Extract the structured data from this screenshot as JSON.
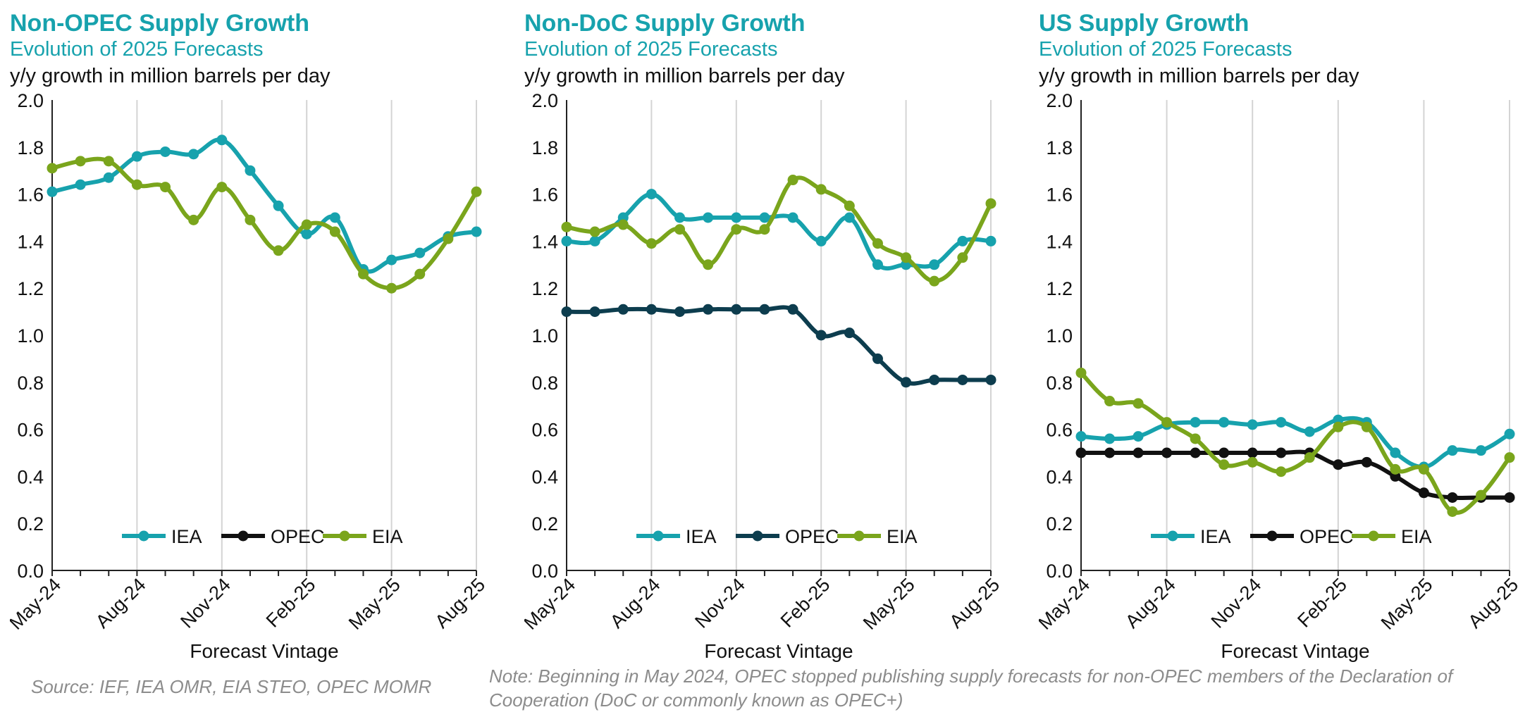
{
  "chart_data": [
    {
      "type": "line",
      "title": "Non-OPEC Supply Growth",
      "subtitle": "Evolution of 2025 Forecasts",
      "ylabel": "y/y growth in million barrels per day",
      "xlabel": "Forecast Vintage",
      "ylim": [
        0,
        2
      ],
      "yticks": [
        "0.0",
        "0.2",
        "0.4",
        "0.6",
        "0.8",
        "1.0",
        "1.2",
        "1.4",
        "1.6",
        "1.8",
        "2.0"
      ],
      "categories": [
        "May-24",
        "Jun-24",
        "Jul-24",
        "Aug-24",
        "Sep-24",
        "Oct-24",
        "Nov-24",
        "Dec-24",
        "Jan-25",
        "Feb-25",
        "Mar-25",
        "Apr-25",
        "May-25",
        "Jun-25",
        "Jul-25",
        "Aug-25"
      ],
      "tick_labels": [
        "May-24",
        "Aug-24",
        "Nov-24",
        "Feb-25",
        "May-25",
        "Aug-25"
      ],
      "legend": "bottom-center",
      "series": [
        {
          "name": "IEA",
          "color": "#17a2ad",
          "values": [
            1.61,
            1.64,
            1.67,
            1.76,
            1.78,
            1.77,
            1.83,
            1.7,
            1.55,
            1.43,
            1.5,
            1.28,
            1.32,
            1.35,
            1.42,
            1.44
          ]
        },
        {
          "name": "OPEC",
          "color": "#111111",
          "values": [
            null,
            null,
            null,
            null,
            null,
            null,
            null,
            null,
            null,
            null,
            null,
            null,
            null,
            null,
            null,
            null
          ]
        },
        {
          "name": "EIA",
          "color": "#7aa51c",
          "values": [
            1.71,
            1.74,
            1.74,
            1.64,
            1.63,
            1.49,
            1.63,
            1.49,
            1.36,
            1.47,
            1.44,
            1.26,
            1.2,
            1.26,
            1.41,
            1.61
          ]
        }
      ]
    },
    {
      "type": "line",
      "title": "Non-DoC Supply Growth",
      "subtitle": "Evolution of 2025 Forecasts",
      "ylabel": "y/y growth in million barrels per day",
      "xlabel": "Forecast Vintage",
      "ylim": [
        0,
        2
      ],
      "yticks": [
        "0.0",
        "0.2",
        "0.4",
        "0.6",
        "0.8",
        "1.0",
        "1.2",
        "1.4",
        "1.6",
        "1.8",
        "2.0"
      ],
      "categories": [
        "May-24",
        "Jun-24",
        "Jul-24",
        "Aug-24",
        "Sep-24",
        "Oct-24",
        "Nov-24",
        "Dec-24",
        "Jan-25",
        "Feb-25",
        "Mar-25",
        "Apr-25",
        "May-25",
        "Jun-25",
        "Jul-25",
        "Aug-25"
      ],
      "tick_labels": [
        "May-24",
        "Aug-24",
        "Nov-24",
        "Feb-25",
        "May-25",
        "Aug-25"
      ],
      "legend": "bottom-center",
      "series": [
        {
          "name": "IEA",
          "color": "#17a2ad",
          "values": [
            1.4,
            1.4,
            1.5,
            1.6,
            1.5,
            1.5,
            1.5,
            1.5,
            1.5,
            1.4,
            1.5,
            1.3,
            1.3,
            1.3,
            1.4,
            1.4
          ]
        },
        {
          "name": "OPEC",
          "color": "#0d3d4e",
          "values": [
            1.1,
            1.1,
            1.11,
            1.11,
            1.1,
            1.11,
            1.11,
            1.11,
            1.11,
            1.0,
            1.01,
            0.9,
            0.8,
            0.81,
            0.81,
            0.81
          ]
        },
        {
          "name": "EIA",
          "color": "#7aa51c",
          "values": [
            1.46,
            1.44,
            1.47,
            1.39,
            1.45,
            1.3,
            1.45,
            1.45,
            1.66,
            1.62,
            1.55,
            1.39,
            1.33,
            1.23,
            1.33,
            1.56
          ]
        }
      ]
    },
    {
      "type": "line",
      "title": "US Supply Growth",
      "subtitle": "Evolution of 2025 Forecasts",
      "ylabel": "y/y growth in million barrels per day",
      "xlabel": "Forecast Vintage",
      "ylim": [
        0,
        2
      ],
      "yticks": [
        "0.0",
        "0.2",
        "0.4",
        "0.6",
        "0.8",
        "1.0",
        "1.2",
        "1.4",
        "1.6",
        "1.8",
        "2.0"
      ],
      "categories": [
        "May-24",
        "Jun-24",
        "Jul-24",
        "Aug-24",
        "Sep-24",
        "Oct-24",
        "Nov-24",
        "Dec-24",
        "Jan-25",
        "Feb-25",
        "Mar-25",
        "Apr-25",
        "May-25",
        "Jun-25",
        "Jul-25",
        "Aug-25"
      ],
      "tick_labels": [
        "May-24",
        "Aug-24",
        "Nov-24",
        "Feb-25",
        "May-25",
        "Aug-25"
      ],
      "legend": "bottom-center",
      "series": [
        {
          "name": "IEA",
          "color": "#17a2ad",
          "values": [
            0.57,
            0.56,
            0.57,
            0.62,
            0.63,
            0.63,
            0.62,
            0.63,
            0.59,
            0.64,
            0.63,
            0.5,
            0.44,
            0.51,
            0.51,
            0.58
          ]
        },
        {
          "name": "OPEC",
          "color": "#111111",
          "values": [
            0.5,
            0.5,
            0.5,
            0.5,
            0.5,
            0.5,
            0.5,
            0.5,
            0.5,
            0.45,
            0.46,
            0.4,
            0.33,
            0.31,
            0.31,
            0.31
          ]
        },
        {
          "name": "EIA",
          "color": "#7aa51c",
          "values": [
            0.84,
            0.72,
            0.71,
            0.63,
            0.56,
            0.45,
            0.46,
            0.42,
            0.48,
            0.61,
            0.61,
            0.43,
            0.43,
            0.25,
            0.32,
            0.48
          ]
        }
      ]
    }
  ],
  "footer": {
    "source": "Source: IEF, IEA OMR, EIA STEO, OPEC MOMR",
    "note": "Note: Beginning in May 2024, OPEC stopped publishing supply forecasts for non-OPEC members of the Declaration of Cooperation (DoC or commonly known as OPEC+)"
  }
}
